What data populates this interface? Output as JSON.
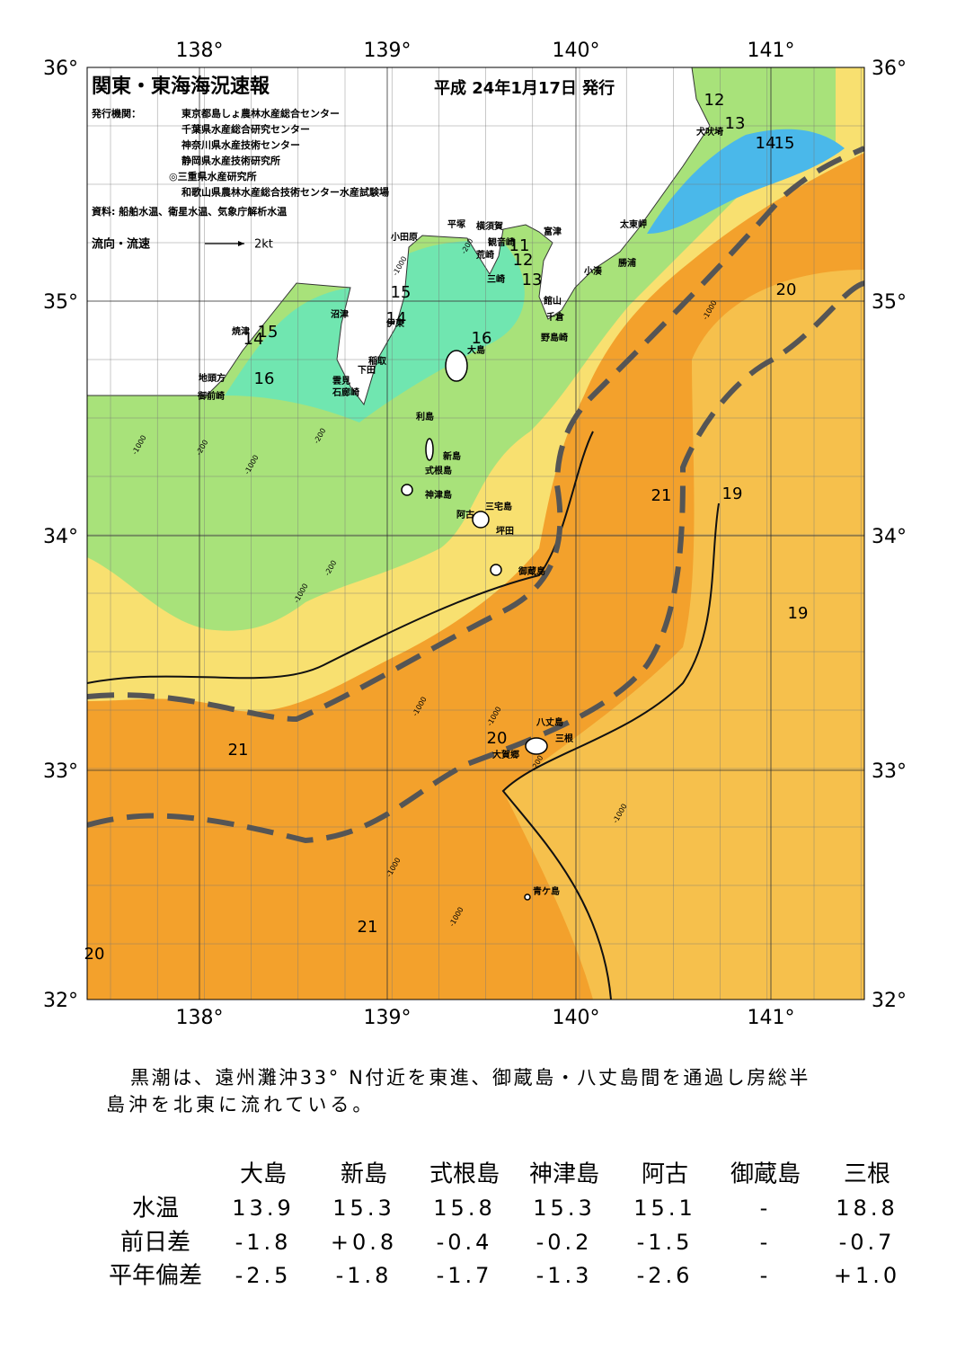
{
  "header": {
    "title": "関東・東海海況速報",
    "date": "平成 24年1月17日 発行",
    "issuer_label": "発行機関：",
    "issuers": [
      "東京都島しょ農林水産総合センター",
      "千葉県水産総合研究センター",
      "神奈川県水産技術センター",
      "静岡県水産技術研究所",
      "◎三重県水産研究所",
      "和歌山県農林水産総合技術センター水産試験場"
    ],
    "source": "資料: 船舶水温、衛星水温、気象庁解析水温",
    "legend_label": "流向・流速",
    "legend_speed": "2kt"
  },
  "map": {
    "lon_labels": [
      "138°",
      "139°",
      "140°",
      "141°"
    ],
    "lat_labels": [
      "36°",
      "35°",
      "34°",
      "33°",
      "32°"
    ],
    "places": [
      "犬吠埼",
      "太東岬",
      "富津",
      "勝浦",
      "小湊",
      "横須賀",
      "観音崎",
      "平塚",
      "小田原",
      "荒崎",
      "三崎",
      "館山",
      "千倉",
      "野島崎",
      "沼津",
      "伊東",
      "焼津",
      "大島",
      "稲取",
      "下田",
      "雲見",
      "石廊崎",
      "地頭方",
      "御前崎",
      "利島",
      "新島",
      "式根島",
      "神津島",
      "三宅島",
      "阿古",
      "坪田",
      "御蔵島",
      "八丈島",
      "三根",
      "大賀郷",
      "青ケ島"
    ],
    "contour_labels": [
      "12",
      "13",
      "14",
      "15",
      "20",
      "11",
      "12",
      "13",
      "15",
      "14",
      "15",
      "14",
      "16",
      "16",
      "21",
      "19",
      "19",
      "21",
      "20",
      "21",
      "20"
    ],
    "depth_labels": [
      "-1000",
      "-200",
      "-1000",
      "-200",
      "-1000",
      "-200",
      "-1000",
      "-200",
      "-1000",
      "-1000",
      "-200",
      "-1000",
      "-1000",
      "-1000",
      "-1000"
    ]
  },
  "description": {
    "lines": [
      "黒潮は、遠州灘沖33° N付近を東進、御蔵島・八丈島間を通過し房総半",
      "島沖を北東に流れている。"
    ]
  },
  "table": {
    "columns": [
      "大島",
      "新島",
      "式根島",
      "神津島",
      "阿古",
      "御蔵島",
      "三根"
    ],
    "rows": [
      {
        "label": "水温",
        "values": [
          "13.9",
          "15.3",
          "15.8",
          "15.3",
          "15.1",
          "-",
          "18.8"
        ]
      },
      {
        "label": "前日差",
        "values": [
          "-1.8",
          "+0.8",
          "-0.4",
          "-0.2",
          "-1.5",
          "-",
          "-0.7"
        ]
      },
      {
        "label": "平年偏差",
        "values": [
          "-2.5",
          "-1.8",
          "-1.7",
          "-1.3",
          "-2.6",
          "-",
          "+1.0"
        ]
      }
    ]
  }
}
